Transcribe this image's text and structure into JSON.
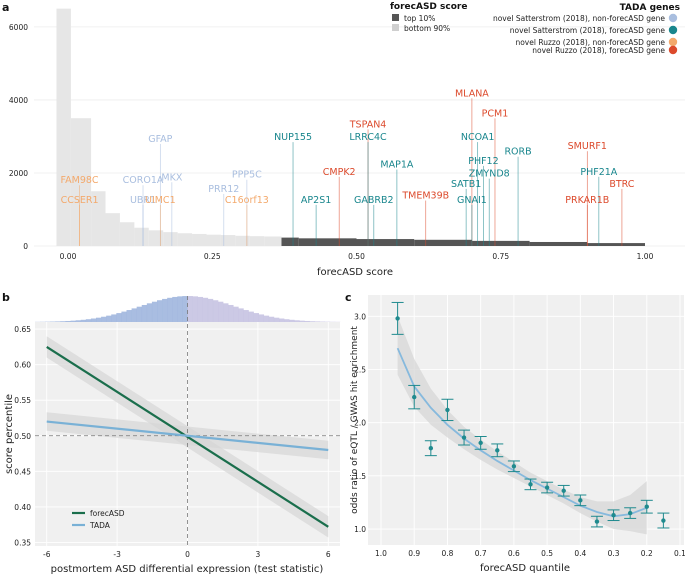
{
  "figure": {
    "panel_a": "a",
    "panel_b": "b",
    "panel_c": "c"
  },
  "colors": {
    "novel_satterstrom_non": "#a9bedf",
    "novel_satterstrom_fore": "#19868d",
    "novel_ruzzo_non": "#f3a96c",
    "novel_ruzzo_fore": "#dc4a2c",
    "top10": "#555555",
    "bottom90": "#e6e6e6",
    "panel_bg": "#f0f0f0",
    "forecasd_line": "#1a6e4c",
    "tada_line": "#79b1d6",
    "panel_c_point": "#1f8a8e",
    "panel_c_fit": "#86b9dd"
  },
  "chart_data": [
    {
      "panel": "a",
      "type": "bar",
      "title": "",
      "xlabel": "forecASD score",
      "ylabel": "",
      "xlim": [
        -0.05,
        1.05
      ],
      "ylim": [
        0,
        6600
      ],
      "xticks": [
        "0.00",
        "0.25",
        "0.50",
        "0.75",
        "1.00"
      ],
      "yticks": [
        "0",
        "2000",
        "4000",
        "6000"
      ],
      "histogram_bottom90": [
        {
          "x0": -0.02,
          "x1": 0.005,
          "count": 6500
        },
        {
          "x0": 0.005,
          "x1": 0.04,
          "count": 3500
        },
        {
          "x0": 0.04,
          "x1": 0.065,
          "count": 1500
        },
        {
          "x0": 0.065,
          "x1": 0.09,
          "count": 900
        },
        {
          "x0": 0.09,
          "x1": 0.115,
          "count": 650
        },
        {
          "x0": 0.115,
          "x1": 0.14,
          "count": 500
        },
        {
          "x0": 0.14,
          "x1": 0.165,
          "count": 430
        },
        {
          "x0": 0.165,
          "x1": 0.19,
          "count": 380
        },
        {
          "x0": 0.19,
          "x1": 0.215,
          "count": 350
        },
        {
          "x0": 0.215,
          "x1": 0.24,
          "count": 330
        },
        {
          "x0": 0.24,
          "x1": 0.265,
          "count": 310
        },
        {
          "x0": 0.265,
          "x1": 0.29,
          "count": 300
        },
        {
          "x0": 0.29,
          "x1": 0.315,
          "count": 280
        },
        {
          "x0": 0.315,
          "x1": 0.34,
          "count": 270
        },
        {
          "x0": 0.34,
          "x1": 0.37,
          "count": 260
        }
      ],
      "histogram_top10": [
        {
          "x0": 0.37,
          "x1": 0.4,
          "count": 230
        },
        {
          "x0": 0.4,
          "x1": 0.5,
          "count": 210
        },
        {
          "x0": 0.5,
          "x1": 0.6,
          "count": 190
        },
        {
          "x0": 0.6,
          "x1": 0.7,
          "count": 170
        },
        {
          "x0": 0.7,
          "x1": 0.8,
          "count": 140
        },
        {
          "x0": 0.8,
          "x1": 0.9,
          "count": 110
        },
        {
          "x0": 0.9,
          "x1": 1.0,
          "count": 80
        }
      ],
      "legend_score": {
        "title": "forecASD score",
        "entries": [
          "top 10%",
          "bottom 90%"
        ]
      },
      "legend_tada": {
        "title": "TADA genes",
        "entries": [
          {
            "label": "novel Satterstrom (2018), non-forecASD gene",
            "color_key": "novel_satterstrom_non"
          },
          {
            "label": "novel Satterstrom (2018), forecASD gene",
            "color_key": "novel_satterstrom_fore"
          },
          {
            "label": "novel Ruzzo (2018), non-forecASD gene",
            "color_key": "novel_ruzzo_non"
          },
          {
            "label": "novel Ruzzo (2018), forecASD gene",
            "color_key": "novel_ruzzo_fore"
          }
        ]
      },
      "genes": [
        {
          "name": "FAM98C",
          "x": 0.02,
          "label_y": 1720,
          "cat": "novel_ruzzo_non"
        },
        {
          "name": "CCSER1",
          "x": 0.02,
          "label_y": 1180,
          "cat": "novel_ruzzo_non"
        },
        {
          "name": "CORO1A",
          "x": 0.13,
          "label_y": 1720,
          "cat": "novel_satterstrom_non"
        },
        {
          "name": "UBR1",
          "x": 0.13,
          "label_y": 1180,
          "cat": "novel_satterstrom_non"
        },
        {
          "name": "GFAP",
          "x": 0.16,
          "label_y": 2850,
          "cat": "novel_satterstrom_non"
        },
        {
          "name": "MKX",
          "x": 0.18,
          "label_y": 1800,
          "cat": "novel_satterstrom_non"
        },
        {
          "name": "UIMC1",
          "x": 0.16,
          "label_y": 1180,
          "cat": "novel_ruzzo_non"
        },
        {
          "name": "PRR12",
          "x": 0.27,
          "label_y": 1480,
          "cat": "novel_satterstrom_non"
        },
        {
          "name": "PPP5C",
          "x": 0.31,
          "label_y": 1870,
          "cat": "novel_satterstrom_non"
        },
        {
          "name": "C16orf13",
          "x": 0.31,
          "label_y": 1180,
          "cat": "novel_ruzzo_non"
        },
        {
          "name": "NUP155",
          "x": 0.39,
          "label_y": 2900,
          "cat": "novel_satterstrom_fore"
        },
        {
          "name": "AP2S1",
          "x": 0.43,
          "label_y": 1180,
          "cat": "novel_satterstrom_fore"
        },
        {
          "name": "CMPK2",
          "x": 0.47,
          "label_y": 1950,
          "cat": "novel_ruzzo_fore"
        },
        {
          "name": "TSPAN4",
          "x": 0.52,
          "label_y": 3250,
          "cat": "novel_ruzzo_fore"
        },
        {
          "name": "LRRC4C",
          "x": 0.52,
          "label_y": 2900,
          "cat": "novel_satterstrom_fore"
        },
        {
          "name": "MAP1A",
          "x": 0.57,
          "label_y": 2150,
          "cat": "novel_satterstrom_fore"
        },
        {
          "name": "GABRB2",
          "x": 0.53,
          "label_y": 1180,
          "cat": "novel_satterstrom_fore"
        },
        {
          "name": "TMEM39B",
          "x": 0.62,
          "label_y": 1300,
          "cat": "novel_ruzzo_fore"
        },
        {
          "name": "MLANA",
          "x": 0.7,
          "label_y": 4100,
          "cat": "novel_ruzzo_fore"
        },
        {
          "name": "PCM1",
          "x": 0.74,
          "label_y": 3550,
          "cat": "novel_ruzzo_fore"
        },
        {
          "name": "NCOA1",
          "x": 0.71,
          "label_y": 2900,
          "cat": "novel_satterstrom_fore"
        },
        {
          "name": "RORB",
          "x": 0.78,
          "label_y": 2500,
          "cat": "novel_satterstrom_fore"
        },
        {
          "name": "PHF12",
          "x": 0.72,
          "label_y": 2250,
          "cat": "novel_satterstrom_fore"
        },
        {
          "name": "ZMYND8",
          "x": 0.73,
          "label_y": 1900,
          "cat": "novel_satterstrom_fore"
        },
        {
          "name": "SATB1",
          "x": 0.69,
          "label_y": 1620,
          "cat": "novel_satterstrom_fore"
        },
        {
          "name": "GNAI1",
          "x": 0.7,
          "label_y": 1180,
          "cat": "novel_satterstrom_fore"
        },
        {
          "name": "SMURF1",
          "x": 0.9,
          "label_y": 2650,
          "cat": "novel_ruzzo_fore"
        },
        {
          "name": "PHF21A",
          "x": 0.92,
          "label_y": 1950,
          "cat": "novel_satterstrom_fore"
        },
        {
          "name": "BTRC",
          "x": 0.96,
          "label_y": 1620,
          "cat": "novel_ruzzo_fore"
        },
        {
          "name": "PRKAR1B",
          "x": 0.9,
          "label_y": 1180,
          "cat": "novel_ruzzo_fore"
        }
      ]
    },
    {
      "panel": "b",
      "type": "line",
      "title": "",
      "xlabel": "postmortem ASD differential expression (test statistic)",
      "ylabel": "score percentile",
      "xlim": [
        -6.5,
        6.5
      ],
      "ylim": [
        0.345,
        0.66
      ],
      "xticks": [
        "-6",
        "-3",
        "0",
        "3",
        "6"
      ],
      "yticks": [
        "0.35",
        "0.40",
        "0.45",
        "0.50",
        "0.55",
        "0.60",
        "0.65"
      ],
      "series": [
        {
          "name": "forecASD",
          "x": [
            -6,
            6
          ],
          "y": [
            0.625,
            0.372
          ],
          "ci_low": [
            0.61,
            0.357
          ],
          "ci_high": [
            0.64,
            0.387
          ],
          "color_key": "forecasd_line"
        },
        {
          "name": "TADA",
          "x": [
            -6,
            6
          ],
          "y": [
            0.52,
            0.48
          ],
          "ci_low": [
            0.507,
            0.467
          ],
          "ci_high": [
            0.533,
            0.493
          ],
          "color_key": "tada_line"
        }
      ],
      "reference_lines": {
        "x": 0,
        "y": 0.5
      },
      "legend": [
        "forecASD",
        "TADA"
      ]
    },
    {
      "panel": "c",
      "type": "scatter",
      "title": "",
      "xlabel": "forecASD quantile",
      "ylabel": "odds ratio of eQTL / GWAS hit enrichment",
      "xlim": [
        1.0,
        0.1
      ],
      "ylim": [
        0.85,
        3.2
      ],
      "xticks": [
        "1.0",
        "0.9",
        "0.8",
        "0.7",
        "0.6",
        "0.5",
        "0.4",
        "0.3",
        "0.2",
        "0.1"
      ],
      "yticks": [
        "1.0",
        "1.5",
        "2.0",
        "2.5",
        "3.0"
      ],
      "points": [
        {
          "x": 0.95,
          "y": 2.98,
          "err": 0.15
        },
        {
          "x": 0.9,
          "y": 2.24,
          "err": 0.11
        },
        {
          "x": 0.85,
          "y": 1.76,
          "err": 0.07
        },
        {
          "x": 0.8,
          "y": 2.12,
          "err": 0.1
        },
        {
          "x": 0.75,
          "y": 1.86,
          "err": 0.07
        },
        {
          "x": 0.7,
          "y": 1.81,
          "err": 0.06
        },
        {
          "x": 0.65,
          "y": 1.74,
          "err": 0.06
        },
        {
          "x": 0.6,
          "y": 1.59,
          "err": 0.05
        },
        {
          "x": 0.55,
          "y": 1.42,
          "err": 0.05
        },
        {
          "x": 0.5,
          "y": 1.39,
          "err": 0.05
        },
        {
          "x": 0.45,
          "y": 1.36,
          "err": 0.05
        },
        {
          "x": 0.4,
          "y": 1.27,
          "err": 0.05
        },
        {
          "x": 0.35,
          "y": 1.07,
          "err": 0.05
        },
        {
          "x": 0.3,
          "y": 1.13,
          "err": 0.05
        },
        {
          "x": 0.25,
          "y": 1.15,
          "err": 0.05
        },
        {
          "x": 0.2,
          "y": 1.21,
          "err": 0.06
        },
        {
          "x": 0.15,
          "y": 1.08,
          "err": 0.07
        }
      ],
      "fit": {
        "x": [
          0.95,
          0.9,
          0.85,
          0.8,
          0.75,
          0.7,
          0.65,
          0.6,
          0.55,
          0.5,
          0.45,
          0.4,
          0.35,
          0.3,
          0.25,
          0.2
        ],
        "y": [
          2.7,
          2.34,
          2.14,
          1.98,
          1.85,
          1.74,
          1.64,
          1.55,
          1.46,
          1.38,
          1.3,
          1.22,
          1.16,
          1.12,
          1.14,
          1.2
        ],
        "ci_low": [
          2.45,
          2.15,
          1.98,
          1.86,
          1.75,
          1.65,
          1.56,
          1.48,
          1.4,
          1.32,
          1.24,
          1.15,
          1.07,
          1.0,
          0.98,
          0.95
        ],
        "ci_high": [
          3.0,
          2.6,
          2.32,
          2.12,
          1.96,
          1.84,
          1.73,
          1.63,
          1.53,
          1.45,
          1.37,
          1.3,
          1.26,
          1.26,
          1.32,
          1.45
        ]
      }
    }
  ]
}
